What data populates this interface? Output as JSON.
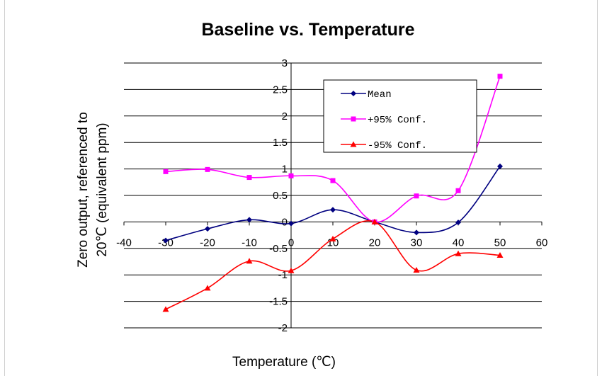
{
  "chart_data": {
    "type": "line",
    "title": "Baseline vs. Temperature",
    "xlabel": "Temperature (℃)",
    "ylabel": [
      "Zero output, referenced to",
      "20℃ (equivalent ppm)"
    ],
    "xlim": [
      -40,
      60
    ],
    "ylim": [
      -2,
      3
    ],
    "x_ticks": [
      "-40",
      "-30",
      "-20",
      "-10",
      "0",
      "10",
      "20",
      "30",
      "40",
      "50",
      "60"
    ],
    "y_ticks": [
      "-2",
      "-1.5",
      "-1",
      "-0.5",
      "0",
      "0.5",
      "1",
      "1.5",
      "2",
      "2.5",
      "3"
    ],
    "grid": "horizontal",
    "legend_position": "top-right-inside",
    "x": [
      -30,
      -20,
      -10,
      0,
      10,
      20,
      30,
      40,
      50
    ],
    "series": [
      {
        "name": "Mean",
        "color": "#000080",
        "marker": "diamond",
        "values": [
          -0.35,
          -0.13,
          0.04,
          -0.03,
          0.23,
          0.0,
          -0.2,
          -0.01,
          1.05
        ]
      },
      {
        "name": "+95% Conf.",
        "color": "#ff00ff",
        "marker": "square",
        "values": [
          0.95,
          0.99,
          0.84,
          0.87,
          0.78,
          0.0,
          0.49,
          0.59,
          2.75
        ]
      },
      {
        "name": "-95% Conf.",
        "color": "#ff0000",
        "marker": "triangle",
        "values": [
          -1.65,
          -1.25,
          -0.74,
          -0.92,
          -0.32,
          0.0,
          -0.91,
          -0.6,
          -0.63
        ]
      }
    ]
  }
}
